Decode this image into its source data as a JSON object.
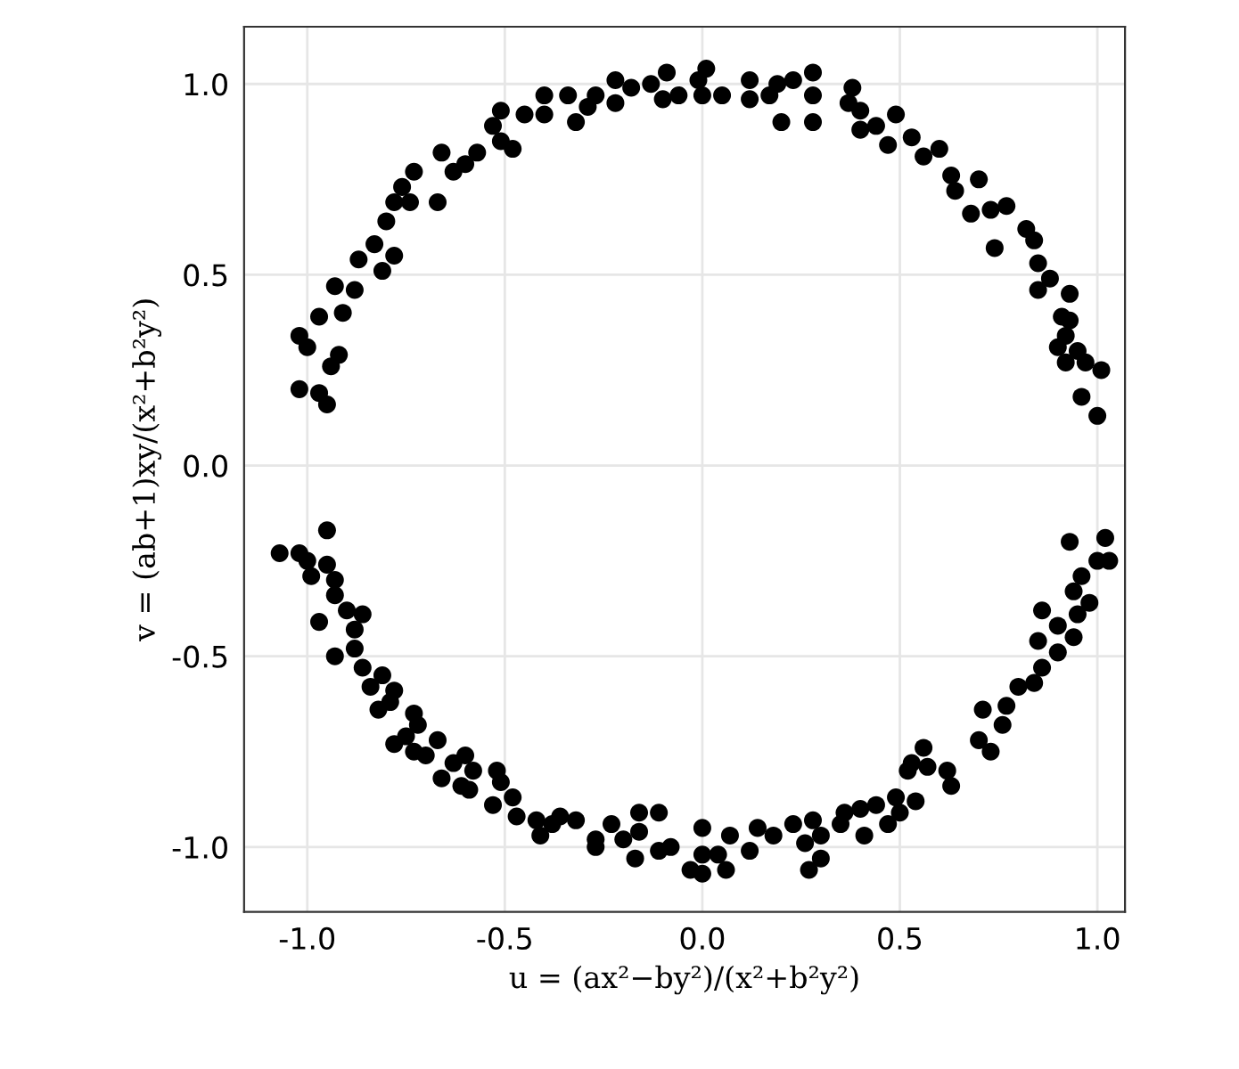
{
  "chart_data": {
    "type": "scatter",
    "xlabel": "u = (ax²−by²)/(x²+b²y²)",
    "ylabel": "v = (ab+1)xy/(x²+b²y²)",
    "xlim": [
      -1.16,
      1.07
    ],
    "ylim": [
      -1.17,
      1.15
    ],
    "xticks": [
      {
        "value": -1.0,
        "label": "-1.0"
      },
      {
        "value": -0.5,
        "label": "-0.5"
      },
      {
        "value": 0.0,
        "label": "0.0"
      },
      {
        "value": 0.5,
        "label": "0.5"
      },
      {
        "value": 1.0,
        "label": "1.0"
      }
    ],
    "yticks": [
      {
        "value": -1.0,
        "label": "-1.0"
      },
      {
        "value": -0.5,
        "label": "-0.5"
      },
      {
        "value": 0.0,
        "label": "0.0"
      },
      {
        "value": 0.5,
        "label": "0.5"
      },
      {
        "value": 1.0,
        "label": "1.0"
      }
    ],
    "grid": true,
    "marker": "circle",
    "series": [
      {
        "color": "#000000",
        "x": [
          -1.02,
          -0.95,
          -0.97,
          -1.02,
          -1.0,
          -0.94,
          -0.92,
          -0.97,
          -0.91,
          -0.93,
          -0.88,
          -0.87,
          -0.81,
          -0.78,
          -0.83,
          -0.8,
          -0.74,
          -0.78,
          -0.73,
          -0.76,
          -0.67,
          -0.66,
          -0.63,
          -0.6,
          -0.57,
          -0.53,
          -0.51,
          -0.51,
          -0.48,
          -0.45,
          -0.4,
          -0.4,
          -0.34,
          -0.32,
          -0.29,
          -0.27,
          -0.22,
          -0.22,
          -0.18,
          -0.13,
          -0.09,
          -0.1,
          -0.06,
          -0.01,
          0.0,
          0.01,
          0.05,
          0.12,
          0.12,
          0.17,
          0.19,
          0.2,
          0.23,
          0.28,
          0.28,
          0.28,
          0.38,
          0.37,
          0.4,
          0.4,
          0.44,
          0.49,
          0.47,
          0.53,
          0.56,
          0.6,
          0.63,
          0.64,
          0.7,
          0.68,
          0.73,
          0.77,
          0.74,
          0.82,
          0.84,
          0.85,
          0.88,
          0.85,
          0.93,
          0.91,
          0.93,
          0.92,
          0.9,
          0.95,
          0.92,
          0.97,
          1.01,
          0.96,
          1.0,
          -1.07,
          -1.02,
          -0.95,
          -1.0,
          -0.99,
          -0.95,
          -0.93,
          -0.93,
          -0.97,
          -0.9,
          -0.86,
          -0.88,
          -0.88,
          -0.93,
          -0.86,
          -0.81,
          -0.84,
          -0.78,
          -0.79,
          -0.82,
          -0.73,
          -0.72,
          -0.75,
          -0.78,
          -0.67,
          -0.73,
          -0.7,
          -0.63,
          -0.6,
          -0.58,
          -0.66,
          -0.61,
          -0.59,
          -0.52,
          -0.51,
          -0.53,
          -0.48,
          -0.47,
          -0.42,
          -0.41,
          -0.38,
          -0.32,
          -0.36,
          -0.27,
          -0.27,
          -0.23,
          -0.2,
          -0.16,
          -0.16,
          -0.17,
          -0.11,
          -0.11,
          -0.08,
          -0.03,
          0.0,
          0.0,
          0.0,
          0.04,
          0.06,
          0.07,
          0.12,
          0.14,
          0.18,
          0.23,
          0.26,
          0.27,
          0.3,
          0.3,
          0.28,
          0.36,
          0.35,
          0.4,
          0.41,
          0.44,
          0.47,
          0.49,
          0.5,
          0.54,
          0.52,
          0.53,
          0.56,
          0.57,
          0.62,
          0.63,
          0.7,
          0.73,
          0.71,
          0.76,
          0.77,
          0.8,
          0.84,
          0.86,
          0.85,
          0.9,
          0.86,
          0.9,
          0.94,
          0.95,
          0.98,
          0.94,
          0.96,
          1.0,
          1.03,
          0.93,
          1.02
        ],
        "values": [
          0.2,
          0.16,
          0.19,
          0.34,
          0.31,
          0.26,
          0.29,
          0.39,
          0.4,
          0.47,
          0.46,
          0.54,
          0.51,
          0.55,
          0.58,
          0.64,
          0.69,
          0.69,
          0.77,
          0.73,
          0.69,
          0.82,
          0.77,
          0.79,
          0.82,
          0.89,
          0.93,
          0.85,
          0.83,
          0.92,
          0.97,
          0.92,
          0.97,
          0.9,
          0.94,
          0.97,
          0.95,
          1.01,
          0.99,
          1.0,
          1.03,
          0.96,
          0.97,
          1.01,
          0.97,
          1.04,
          0.97,
          1.01,
          0.96,
          0.97,
          1.0,
          0.9,
          1.01,
          1.03,
          0.9,
          0.97,
          0.99,
          0.95,
          0.93,
          0.88,
          0.89,
          0.92,
          0.84,
          0.86,
          0.81,
          0.83,
          0.76,
          0.72,
          0.75,
          0.66,
          0.67,
          0.68,
          0.57,
          0.62,
          0.59,
          0.53,
          0.49,
          0.46,
          0.45,
          0.39,
          0.38,
          0.34,
          0.31,
          0.3,
          0.27,
          0.27,
          0.25,
          0.18,
          0.13,
          -0.23,
          -0.23,
          -0.17,
          -0.25,
          -0.29,
          -0.26,
          -0.3,
          -0.34,
          -0.41,
          -0.38,
          -0.39,
          -0.43,
          -0.48,
          -0.5,
          -0.53,
          -0.55,
          -0.58,
          -0.59,
          -0.62,
          -0.64,
          -0.65,
          -0.68,
          -0.71,
          -0.73,
          -0.72,
          -0.75,
          -0.76,
          -0.78,
          -0.76,
          -0.8,
          -0.82,
          -0.84,
          -0.85,
          -0.8,
          -0.83,
          -0.89,
          -0.87,
          -0.92,
          -0.93,
          -0.97,
          -0.94,
          -0.93,
          -0.92,
          -0.98,
          -1.0,
          -0.94,
          -0.98,
          -0.91,
          -0.96,
          -1.03,
          -0.91,
          -1.01,
          -1.0,
          -1.06,
          -1.02,
          -0.95,
          -1.07,
          -1.02,
          -1.06,
          -0.97,
          -1.01,
          -0.95,
          -0.97,
          -0.94,
          -0.99,
          -1.06,
          -1.03,
          -0.97,
          -0.93,
          -0.91,
          -0.94,
          -0.9,
          -0.97,
          -0.89,
          -0.94,
          -0.87,
          -0.91,
          -0.88,
          -0.8,
          -0.78,
          -0.74,
          -0.79,
          -0.8,
          -0.84,
          -0.72,
          -0.75,
          -0.64,
          -0.68,
          -0.63,
          -0.58,
          -0.57,
          -0.53,
          -0.46,
          -0.49,
          -0.38,
          -0.42,
          -0.45,
          -0.39,
          -0.36,
          -0.33,
          -0.29,
          -0.25,
          -0.25,
          -0.2,
          -0.19
        ]
      }
    ]
  }
}
